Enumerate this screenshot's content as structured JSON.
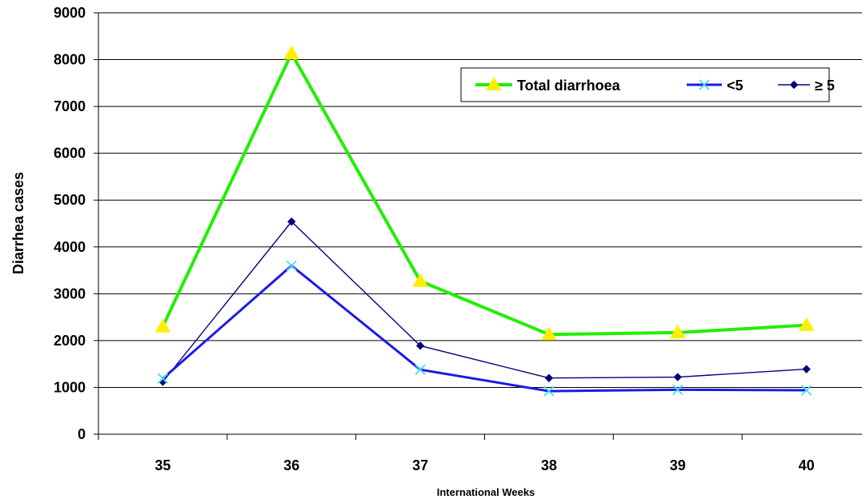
{
  "chart_data": {
    "type": "line",
    "categories": [
      "35",
      "36",
      "37",
      "38",
      "39",
      "40"
    ],
    "series": [
      {
        "name": "Total diarrhoea",
        "values": [
          2300,
          8130,
          3270,
          2130,
          2170,
          2330
        ],
        "color": "#22ee00",
        "marker": "triangle",
        "marker_color": "#ffee00"
      },
      {
        "name": "<5",
        "values": [
          1190,
          3600,
          1380,
          920,
          950,
          940
        ],
        "color": "#1a1ae6",
        "marker": "x",
        "marker_color": "#44ddee"
      },
      {
        "name": "≥ 5",
        "values": [
          1120,
          4540,
          1890,
          1200,
          1220,
          1390
        ],
        "color": "#00007a",
        "marker": "diamond",
        "marker_color": "#00007a"
      }
    ],
    "y_ticks": [
      "0",
      "1000",
      "2000",
      "3000",
      "4000",
      "5000",
      "6000",
      "7000",
      "8000",
      "9000"
    ],
    "ylim": [
      0,
      9000
    ],
    "xlabel": "International Weeks",
    "ylabel": "Diarrhea cases",
    "grid": "horizontal",
    "legend_position": "top-right"
  }
}
